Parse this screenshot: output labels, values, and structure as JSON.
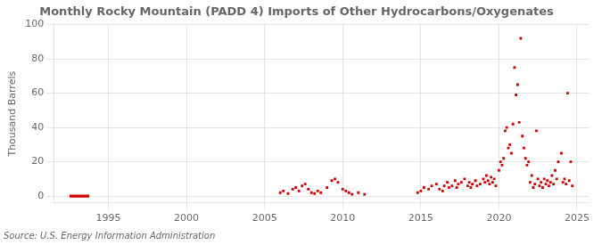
{
  "chart_data": {
    "type": "scatter",
    "title": "Monthly Rocky Mountain (PADD 4) Imports of Other Hydrocarbons/Oxygenates",
    "ylabel": "Thousand Barrels",
    "annotations": [
      "Source: U.S. Energy Information Administration"
    ],
    "xlim": [
      1991.5,
      2025.8
    ],
    "xticks": [
      1995,
      2000,
      2005,
      2010,
      2015,
      2020,
      2025
    ],
    "ylim": [
      -4,
      100
    ],
    "yticks": [
      0,
      20,
      40,
      60,
      80,
      100
    ],
    "grid": true,
    "series": [
      {
        "type": "area",
        "color": "#cc0000",
        "x": [
          1992.5,
          1993.8
        ],
        "values": [
          0.8,
          0.8
        ],
        "base": [
          -0.8,
          -0.8
        ]
      },
      {
        "type": "scatter",
        "marker": "square",
        "color": "#cc0000",
        "x": [
          2006.0,
          2006.2,
          2006.5,
          2006.8,
          2007.0,
          2007.2,
          2007.4,
          2007.6,
          2007.8,
          2008.0,
          2008.2,
          2008.4,
          2008.6,
          2009.0,
          2009.3,
          2009.5,
          2009.7,
          2010.0,
          2010.2,
          2010.4,
          2010.6,
          2011.0,
          2011.4,
          2014.8,
          2015.0,
          2015.2,
          2015.5,
          2015.7,
          2016.0,
          2016.2,
          2016.4,
          2016.5,
          2016.7,
          2016.8,
          2017.0,
          2017.2,
          2017.3,
          2017.4,
          2017.6,
          2017.8,
          2018.0,
          2018.1,
          2018.2,
          2018.3,
          2018.5,
          2018.6,
          2018.8,
          2019.0,
          2019.1,
          2019.2,
          2019.3,
          2019.4,
          2019.5,
          2019.6,
          2019.7,
          2019.8,
          2020.0,
          2020.1,
          2020.2,
          2020.3,
          2020.4,
          2020.5,
          2020.6,
          2020.7,
          2020.8,
          2020.9,
          2021.0,
          2021.1,
          2021.2,
          2021.3,
          2021.4,
          2021.5,
          2021.6,
          2021.7,
          2021.8,
          2021.9,
          2022.0,
          2022.1,
          2022.2,
          2022.3,
          2022.4,
          2022.5,
          2022.6,
          2022.7,
          2022.8,
          2022.9,
          2023.0,
          2023.1,
          2023.2,
          2023.3,
          2023.4,
          2023.5,
          2023.6,
          2023.7,
          2023.8,
          2024.0,
          2024.1,
          2024.2,
          2024.3,
          2024.4,
          2024.5,
          2024.6,
          2024.7
        ],
        "values": [
          2,
          3,
          1.5,
          4,
          5,
          3,
          6,
          7,
          4,
          2,
          1.5,
          3,
          2,
          5,
          9,
          10,
          8,
          4,
          3,
          2,
          1,
          2,
          1,
          2,
          3,
          5,
          4,
          6,
          7,
          4,
          3,
          6,
          8,
          5,
          6,
          9,
          5,
          7,
          8,
          10,
          6,
          8,
          5,
          7,
          9,
          6,
          7,
          10,
          8,
          12,
          9,
          7,
          11,
          8,
          10,
          6,
          15,
          20,
          18,
          22,
          38,
          40,
          28,
          30,
          25,
          42,
          75,
          59,
          65,
          43,
          92,
          35,
          28,
          22,
          18,
          20,
          8,
          12,
          5,
          7,
          38,
          10,
          6,
          8,
          5,
          10,
          7,
          9,
          6,
          8,
          12,
          7,
          15,
          10,
          20,
          25,
          8,
          10,
          7,
          60,
          9,
          20,
          6
        ]
      }
    ]
  }
}
